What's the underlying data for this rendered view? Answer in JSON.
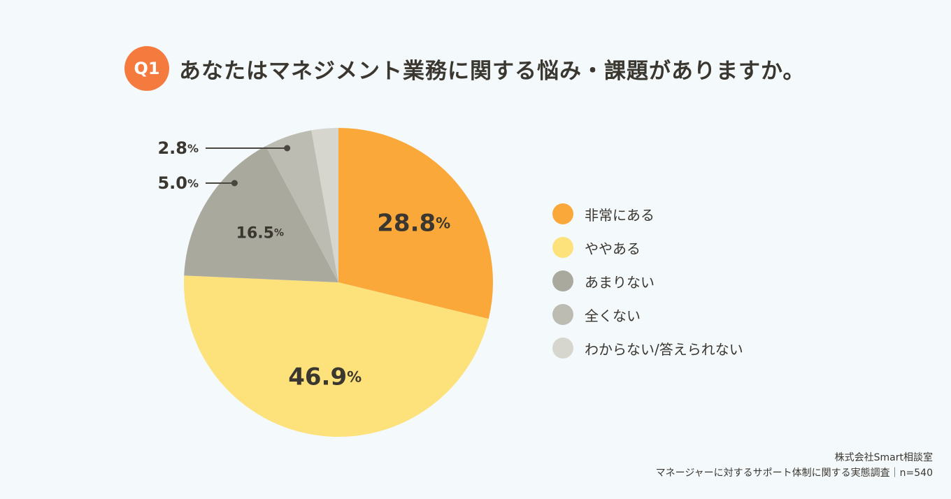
{
  "header": {
    "badge": "Q1",
    "title": "あなたはマネジメント業務に関する悩み・課題がありますか。"
  },
  "chart_data": {
    "type": "pie",
    "title": "あなたはマネジメント業務に関する悩み・課題がありますか。",
    "start": "top",
    "direction": "clockwise",
    "series": [
      {
        "name": "非常にある",
        "value": 28.8,
        "label": "28.8",
        "color": "#fba83a",
        "label_placement": "inside"
      },
      {
        "name": "ややある",
        "value": 46.9,
        "label": "46.9",
        "color": "#fde17b",
        "label_placement": "inside"
      },
      {
        "name": "あまりない",
        "value": 16.5,
        "label": "16.5",
        "color": "#a9a99d",
        "label_placement": "inside"
      },
      {
        "name": "全くない",
        "value": 5.0,
        "label": "5.0",
        "color": "#bcbcb3",
        "label_placement": "outside"
      },
      {
        "name": "わからない/答えられない",
        "value": 2.8,
        "label": "2.8",
        "color": "#d6d6cf",
        "label_placement": "outside"
      }
    ],
    "unit": "%",
    "legend_position": "right"
  },
  "footer": {
    "source": "株式会社Smart相談室",
    "note": "マネージャーに対するサポート体制に関する実態調査｜n=540"
  }
}
